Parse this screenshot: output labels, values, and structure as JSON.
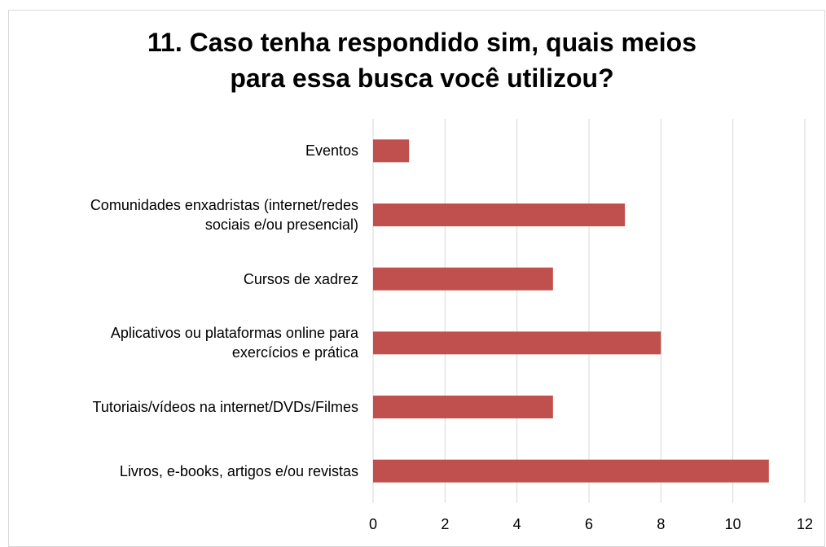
{
  "chart_data": {
    "type": "bar",
    "orientation": "horizontal",
    "title": "11.  Caso tenha respondido sim, quais meios\npara essa busca você utilizou?",
    "categories": [
      "Eventos",
      "Comunidades enxadristas (internet/redes\nsociais e/ou presencial)",
      "Cursos de xadrez",
      "Aplicativos ou plataformas online para\nexercícios e prática",
      "Tutoriais/vídeos na internet/DVDs/Filmes",
      "Livros, e-books, artigos e/ou revistas"
    ],
    "values": [
      1,
      7,
      5,
      8,
      5,
      11
    ],
    "color": "#c0504d",
    "xlim": [
      0,
      12
    ],
    "xticks": [
      0,
      2,
      4,
      6,
      8,
      10,
      12
    ],
    "grid": true
  }
}
